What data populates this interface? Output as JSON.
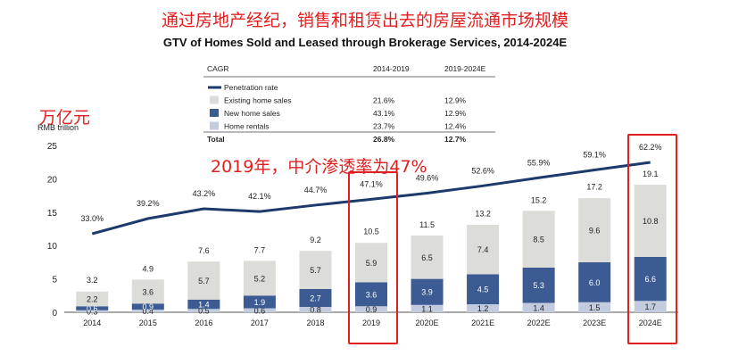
{
  "header": {
    "red_title": "通过房地产经纪，销售和租赁出去的房屋流通市场规模",
    "unit_cn": "万亿元",
    "annotation": "2019年，中介渗透率为47%"
  },
  "legend_table": {
    "header": [
      "CAGR",
      "2014-2019",
      "2019-2024E"
    ],
    "rows": [
      {
        "label": "Penetration rate",
        "v1": "",
        "v2": "",
        "swatch": "line",
        "color": "#1c3a6b"
      },
      {
        "label": "Existing home sales",
        "v1": "21.6%",
        "v2": "12.9%",
        "swatch": "box",
        "color": "#dcdcd8"
      },
      {
        "label": "New home sales",
        "v1": "43.1%",
        "v2": "12.9%",
        "swatch": "box",
        "color": "#3c5b93"
      },
      {
        "label": "Home rentals",
        "v1": "23.7%",
        "v2": "12.4%",
        "swatch": "box",
        "color": "#c3ccdf"
      },
      {
        "label": "Total",
        "v1": "26.8%",
        "v2": "12.7%",
        "swatch": "none",
        "color": ""
      }
    ]
  },
  "chart_data": {
    "type": "bar",
    "title": "GTV of Homes Sold and Leased through Brokerage Services, 2014-2024E",
    "ylabel": "RMB trillion",
    "ylim": [
      0,
      25
    ],
    "yticks": [
      0,
      5,
      10,
      15,
      20,
      25
    ],
    "categories": [
      "2014",
      "2015",
      "2016",
      "2017",
      "2018",
      "2019",
      "2020E",
      "2021E",
      "2022E",
      "2023E",
      "2024E"
    ],
    "series": [
      {
        "name": "Home rentals",
        "color": "#c3ccdf",
        "values": [
          0.3,
          0.4,
          0.5,
          0.6,
          0.8,
          0.9,
          1.1,
          1.2,
          1.4,
          1.5,
          1.7
        ]
      },
      {
        "name": "New home sales",
        "color": "#3c5b93",
        "values": [
          0.6,
          0.9,
          1.4,
          1.9,
          2.7,
          3.6,
          3.9,
          4.5,
          5.3,
          6.0,
          6.6
        ]
      },
      {
        "name": "Existing home sales",
        "color": "#dcdcd8",
        "values": [
          2.2,
          3.6,
          5.7,
          5.2,
          5.7,
          5.9,
          6.5,
          7.4,
          8.5,
          9.6,
          10.8
        ]
      }
    ],
    "totals": [
      3.2,
      4.9,
      7.6,
      7.7,
      9.2,
      10.5,
      11.5,
      13.2,
      15.2,
      17.2,
      19.1
    ],
    "penetration_rate": {
      "name": "Penetration rate",
      "color": "#1c3a6b",
      "values": [
        33.0,
        39.2,
        43.2,
        42.1,
        44.7,
        47.1,
        49.6,
        52.6,
        55.9,
        59.1,
        62.2
      ],
      "labels": [
        "33.0%",
        "39.2%",
        "43.2%",
        "42.1%",
        "44.7%",
        "47.1%",
        "49.6%",
        "52.6%",
        "55.9%",
        "59.1%",
        "62.2%"
      ]
    },
    "highlighted_categories": [
      "2019",
      "2024E"
    ],
    "highlight_color": "#e02020",
    "grid": false
  }
}
